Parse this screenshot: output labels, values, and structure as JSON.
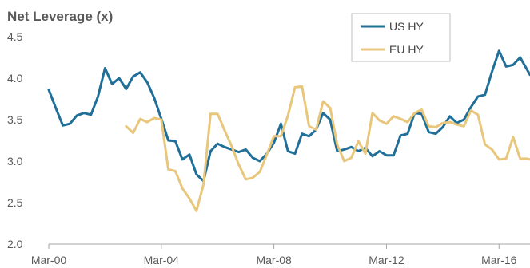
{
  "chart_data": {
    "type": "line",
    "title": "Net Leverage (x)",
    "xlabel": "",
    "ylabel": "",
    "ylim": [
      2.0,
      4.5
    ],
    "yticks": [
      "2.0",
      "2.5",
      "3.0",
      "3.5",
      "4.0",
      "4.5"
    ],
    "xlim": [
      2000.0,
      2017.1
    ],
    "xticks": [
      {
        "label": "Mar-00",
        "value": 2000.0
      },
      {
        "label": "Mar-04",
        "value": 2004.0
      },
      {
        "label": "Mar-08",
        "value": 2008.0
      },
      {
        "label": "Mar-12",
        "value": 2012.0
      },
      {
        "label": "Mar-16",
        "value": 2016.0
      }
    ],
    "grid": false,
    "legend_position": "top-right",
    "series": [
      {
        "name": "US HY",
        "color": "#1f6f99",
        "x": [
          2000.0,
          2000.25,
          2000.5,
          2000.75,
          2001.0,
          2001.25,
          2001.5,
          2001.75,
          2002.0,
          2002.25,
          2002.5,
          2002.75,
          2003.0,
          2003.25,
          2003.5,
          2003.75,
          2004.0,
          2004.25,
          2004.5,
          2004.75,
          2005.0,
          2005.25,
          2005.5,
          2005.75,
          2006.0,
          2006.25,
          2006.5,
          2006.75,
          2007.0,
          2007.25,
          2007.5,
          2007.75,
          2008.0,
          2008.25,
          2008.5,
          2008.75,
          2009.0,
          2009.25,
          2009.5,
          2009.75,
          2010.0,
          2010.25,
          2010.5,
          2010.75,
          2011.0,
          2011.25,
          2011.5,
          2011.75,
          2012.0,
          2012.25,
          2012.5,
          2012.75,
          2013.0,
          2013.25,
          2013.5,
          2013.75,
          2014.0,
          2014.25,
          2014.5,
          2014.75,
          2015.0,
          2015.25,
          2015.5,
          2015.75,
          2016.0,
          2016.25,
          2016.5,
          2016.75,
          2017.0,
          2017.1
        ],
        "values": [
          3.86,
          3.64,
          3.43,
          3.45,
          3.55,
          3.58,
          3.56,
          3.78,
          4.12,
          3.93,
          4.0,
          3.87,
          4.02,
          4.07,
          3.95,
          3.76,
          3.51,
          3.25,
          3.24,
          3.02,
          3.08,
          2.84,
          2.76,
          3.12,
          3.21,
          3.17,
          3.14,
          3.11,
          3.14,
          3.04,
          3.0,
          3.09,
          3.22,
          3.45,
          3.12,
          3.09,
          3.33,
          3.3,
          3.38,
          3.58,
          3.5,
          3.12,
          3.14,
          3.17,
          3.12,
          3.16,
          3.06,
          3.12,
          3.07,
          3.07,
          3.31,
          3.33,
          3.58,
          3.57,
          3.35,
          3.33,
          3.41,
          3.54,
          3.46,
          3.5,
          3.65,
          3.78,
          3.8,
          4.08,
          4.33,
          4.14,
          4.16,
          4.25,
          4.1,
          4.04
        ]
      },
      {
        "name": "EU HY",
        "color": "#e8c77d",
        "x": [
          2002.75,
          2003.0,
          2003.25,
          2003.5,
          2003.75,
          2004.0,
          2004.25,
          2004.5,
          2004.75,
          2005.0,
          2005.25,
          2005.5,
          2005.75,
          2006.0,
          2006.25,
          2006.5,
          2006.75,
          2007.0,
          2007.25,
          2007.5,
          2007.75,
          2008.0,
          2008.25,
          2008.5,
          2008.75,
          2009.0,
          2009.25,
          2009.5,
          2009.75,
          2010.0,
          2010.25,
          2010.5,
          2010.75,
          2011.0,
          2011.25,
          2011.5,
          2011.75,
          2012.0,
          2012.25,
          2012.5,
          2012.75,
          2013.0,
          2013.25,
          2013.5,
          2013.75,
          2014.0,
          2014.25,
          2014.5,
          2014.75,
          2015.0,
          2015.25,
          2015.5,
          2015.75,
          2016.0,
          2016.25,
          2016.5,
          2016.75,
          2017.0,
          2017.1
        ],
        "values": [
          3.42,
          3.34,
          3.51,
          3.47,
          3.52,
          3.5,
          2.9,
          2.88,
          2.67,
          2.55,
          2.4,
          2.72,
          3.57,
          3.57,
          3.37,
          3.18,
          2.96,
          2.78,
          2.8,
          2.87,
          3.08,
          3.3,
          3.3,
          3.55,
          3.89,
          3.9,
          3.42,
          3.38,
          3.72,
          3.64,
          3.2,
          3.0,
          3.04,
          3.24,
          3.09,
          3.58,
          3.49,
          3.45,
          3.54,
          3.51,
          3.47,
          3.58,
          3.62,
          3.42,
          3.41,
          3.46,
          3.47,
          3.44,
          3.42,
          3.61,
          3.56,
          3.2,
          3.14,
          3.02,
          3.03,
          3.29,
          3.03,
          3.03,
          3.02
        ]
      }
    ]
  }
}
